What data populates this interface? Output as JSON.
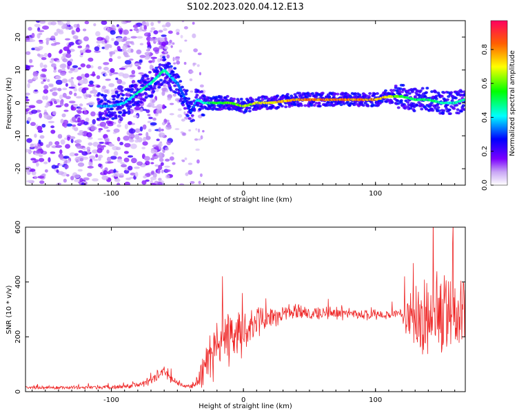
{
  "title": "S102.2023.020.04.12.E13",
  "chart_data": [
    {
      "type": "heatmap",
      "xlabel": "Height of straight line (km)",
      "ylabel": "Frequency (Hz)",
      "xlim": [
        -165,
        168
      ],
      "ylim": [
        -25,
        25
      ],
      "xticks": [
        -100,
        0,
        100
      ],
      "yticks": [
        -20,
        -10,
        0,
        10,
        20
      ],
      "grid": false,
      "colorbar": {
        "label": "Normalized spectral amplitude",
        "range": [
          0.0,
          0.97
        ],
        "ticks": [
          0.0,
          0.2,
          0.4,
          0.6,
          0.8
        ],
        "tick_labels": [
          "0.0",
          "0.2",
          "0.4",
          "0.6",
          "0.8"
        ],
        "colors": [
          "#ffffff",
          "#c9a6f5",
          "#7b00ff",
          "#0000ff",
          "#00ffff",
          "#00ff00",
          "#ffff00",
          "#ff6000",
          "#ff0060"
        ]
      },
      "ridge": {
        "x": [
          -100,
          -90,
          -80,
          -70,
          -60,
          -55,
          -50,
          -45,
          -40,
          -35,
          -30,
          -20,
          -10,
          0,
          10,
          20,
          40,
          60,
          80,
          100,
          110,
          120,
          130,
          140,
          150,
          160,
          168
        ],
        "y": [
          -1,
          0,
          3,
          6,
          10,
          8,
          6,
          2,
          -3,
          1,
          0,
          0,
          0,
          -1,
          0,
          0,
          1,
          1,
          1,
          1,
          2,
          2,
          1,
          1,
          0,
          0,
          1
        ],
        "amplitude": [
          0.4,
          0.45,
          0.5,
          0.5,
          0.5,
          0.45,
          0.4,
          0.35,
          0.3,
          0.45,
          0.5,
          0.6,
          0.65,
          0.7,
          0.75,
          0.8,
          0.85,
          0.9,
          0.9,
          0.85,
          0.8,
          0.6,
          0.55,
          0.55,
          0.5,
          0.5,
          0.5
        ]
      }
    },
    {
      "type": "line",
      "xlabel": "Height of straight line (km)",
      "ylabel": "SNR (10 * v/v)",
      "xlim": [
        -165,
        168
      ],
      "ylim": [
        0,
        600
      ],
      "xticks": [
        -100,
        0,
        100
      ],
      "yticks": [
        0,
        200,
        400,
        600
      ],
      "grid": false,
      "series": [
        {
          "name": "SNR",
          "color": "#ee2222",
          "x": [
            -165,
            -150,
            -130,
            -110,
            -90,
            -80,
            -70,
            -65,
            -60,
            -55,
            -50,
            -45,
            -40,
            -35,
            -30,
            -25,
            -20,
            -10,
            0,
            10,
            20,
            30,
            40,
            60,
            80,
            100,
            110,
            120,
            125,
            130,
            140,
            150,
            160,
            168
          ],
          "y": [
            15,
            15,
            15,
            15,
            18,
            25,
            40,
            60,
            75,
            50,
            30,
            22,
            20,
            30,
            90,
            150,
            170,
            200,
            220,
            250,
            270,
            285,
            290,
            285,
            283,
            280,
            280,
            285,
            280,
            270,
            270,
            275,
            270,
            275
          ],
          "spread": [
            8,
            8,
            8,
            8,
            10,
            15,
            20,
            25,
            30,
            25,
            15,
            10,
            10,
            30,
            90,
            120,
            130,
            120,
            100,
            70,
            50,
            40,
            35,
            30,
            25,
            25,
            25,
            30,
            110,
            160,
            180,
            200,
            170,
            160
          ]
        }
      ]
    }
  ]
}
